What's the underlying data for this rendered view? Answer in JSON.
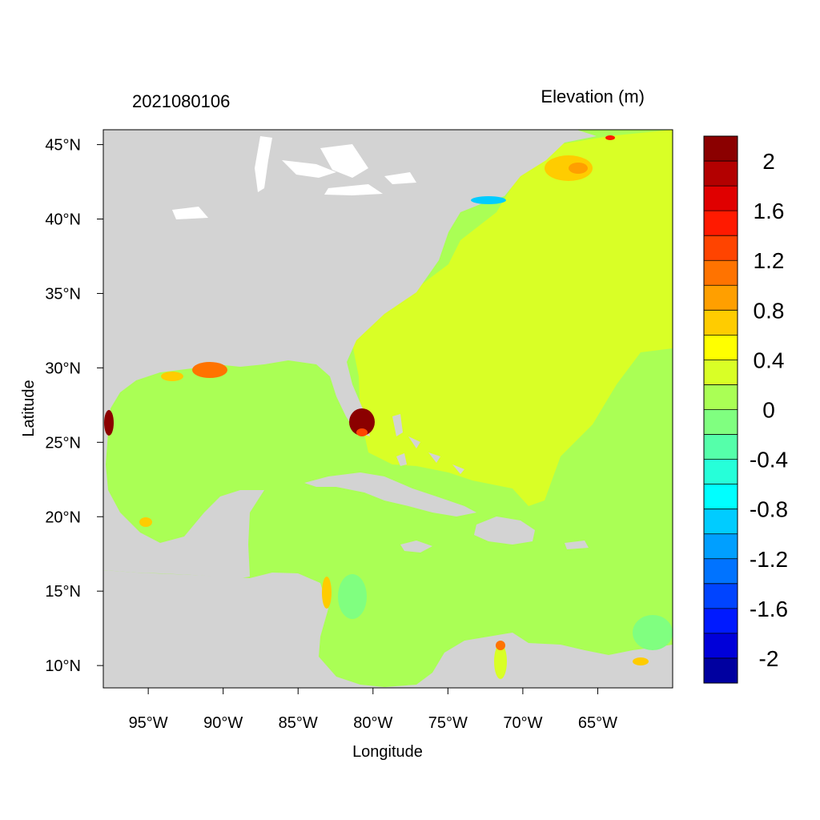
{
  "title_left": "2021080106",
  "title_right": "Elevation (m)",
  "xlabel": "Longitude",
  "ylabel": "Latitude",
  "x_ticks": [
    "95°W",
    "90°W",
    "85°W",
    "80°W",
    "75°W",
    "70°W",
    "65°W"
  ],
  "y_ticks": [
    "45°N",
    "40°N",
    "35°N",
    "30°N",
    "25°N",
    "20°N",
    "15°N",
    "10°N"
  ],
  "map_extent": {
    "lon_min": -98,
    "lon_max": -60,
    "lat_min": 8.5,
    "lat_max": 46
  },
  "colorbar": {
    "labels": [
      "2",
      "1.6",
      "1.2",
      "0.8",
      "0.4",
      "0",
      "-0.4",
      "-0.8",
      "-1.2",
      "-1.6",
      "-2"
    ],
    "colors": [
      "#8b0000",
      "#b30000",
      "#e00000",
      "#ff1a00",
      "#ff4400",
      "#ff7300",
      "#ff9f00",
      "#ffcc00",
      "#ffff00",
      "#d9ff26",
      "#aaff55",
      "#80ff80",
      "#55ffaa",
      "#26ffd9",
      "#00ffff",
      "#00ccff",
      "#009fff",
      "#0073ff",
      "#0044ff",
      "#001aff",
      "#0000d9",
      "#0000a0"
    ]
  },
  "colors": {
    "land": "#d3d3d3",
    "ocean_base": "#aaff55",
    "ocean_atlantic": "#d9ff26",
    "flood": "#8b0000"
  }
}
